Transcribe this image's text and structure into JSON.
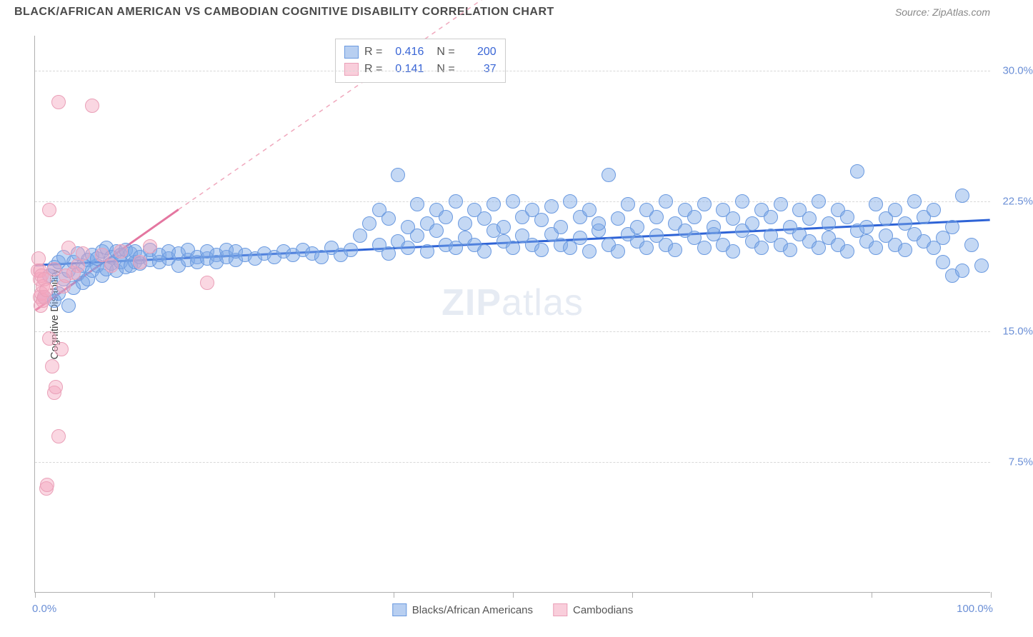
{
  "header": {
    "title": "BLACK/AFRICAN AMERICAN VS CAMBODIAN COGNITIVE DISABILITY CORRELATION CHART",
    "source": "Source: ZipAtlas.com"
  },
  "watermark": {
    "zip": "ZIP",
    "atlas": "atlas"
  },
  "chart": {
    "type": "scatter",
    "x_axis": {
      "min": 0,
      "max": 100,
      "label_left": "0.0%",
      "label_right": "100.0%",
      "tick_step": 12.5
    },
    "y_axis": {
      "title": "Cognitive Disability",
      "min": 0,
      "max": 32,
      "ticks": [
        {
          "v": 7.5,
          "label": "7.5%"
        },
        {
          "v": 15.0,
          "label": "15.0%"
        },
        {
          "v": 22.5,
          "label": "22.5%"
        },
        {
          "v": 30.0,
          "label": "30.0%"
        }
      ]
    },
    "background_color": "#ffffff",
    "grid_color": "#d8d8d8",
    "series": [
      {
        "name": "Blacks/African Americans",
        "color_fill": "rgba(125,168,230,0.45)",
        "color_stroke": "#6b9ae0",
        "marker_radius": 10,
        "trend": {
          "x1": 0,
          "y1": 18.8,
          "x2": 100,
          "y2": 21.4,
          "color": "#2e63d6",
          "width": 3,
          "dash": ""
        },
        "stats": {
          "R": "0.416",
          "N": "200"
        },
        "points": [
          [
            1,
            17.0
          ],
          [
            1.5,
            18.2
          ],
          [
            2,
            16.8
          ],
          [
            2,
            18.7
          ],
          [
            2.5,
            17.2
          ],
          [
            2.5,
            19.0
          ],
          [
            3,
            18.0
          ],
          [
            3,
            19.3
          ],
          [
            3.5,
            16.5
          ],
          [
            3.5,
            18.5
          ],
          [
            4,
            17.5
          ],
          [
            4,
            19.0
          ],
          [
            4.5,
            18.3
          ],
          [
            4.5,
            19.5
          ],
          [
            5,
            17.8
          ],
          [
            5,
            18.8
          ],
          [
            5.5,
            19.1
          ],
          [
            5.5,
            18.0
          ],
          [
            6,
            18.5
          ],
          [
            6,
            19.4
          ],
          [
            6.5,
            18.8
          ],
          [
            6.5,
            19.2
          ],
          [
            7,
            18.2
          ],
          [
            7,
            19.6
          ],
          [
            7.5,
            18.6
          ],
          [
            7.5,
            19.8
          ],
          [
            8,
            18.9
          ],
          [
            8,
            19.3
          ],
          [
            8.5,
            18.5
          ],
          [
            8.5,
            19.6
          ],
          [
            9,
            19.0
          ],
          [
            9,
            19.4
          ],
          [
            9.5,
            18.7
          ],
          [
            9.5,
            19.7
          ],
          [
            10,
            18.8
          ],
          [
            10,
            19.5
          ],
          [
            10.5,
            19.0
          ],
          [
            10.5,
            19.6
          ],
          [
            11,
            18.9
          ],
          [
            11,
            19.3
          ],
          [
            12,
            19.1
          ],
          [
            12,
            19.7
          ],
          [
            13,
            19.0
          ],
          [
            13,
            19.4
          ],
          [
            14,
            19.2
          ],
          [
            14,
            19.6
          ],
          [
            15,
            18.8
          ],
          [
            15,
            19.5
          ],
          [
            16,
            19.1
          ],
          [
            16,
            19.7
          ],
          [
            17,
            19.3
          ],
          [
            17,
            19.0
          ],
          [
            18,
            19.2
          ],
          [
            18,
            19.6
          ],
          [
            19,
            19.4
          ],
          [
            19,
            19.0
          ],
          [
            20,
            19.3
          ],
          [
            20,
            19.7
          ],
          [
            21,
            19.1
          ],
          [
            21,
            19.6
          ],
          [
            22,
            19.4
          ],
          [
            23,
            19.2
          ],
          [
            24,
            19.5
          ],
          [
            25,
            19.3
          ],
          [
            26,
            19.6
          ],
          [
            27,
            19.4
          ],
          [
            28,
            19.7
          ],
          [
            29,
            19.5
          ],
          [
            30,
            19.3
          ],
          [
            31,
            19.8
          ],
          [
            32,
            19.4
          ],
          [
            33,
            19.7
          ],
          [
            34,
            20.5
          ],
          [
            35,
            21.2
          ],
          [
            36,
            20.0
          ],
          [
            36,
            22.0
          ],
          [
            37,
            19.5
          ],
          [
            37,
            21.5
          ],
          [
            38,
            20.2
          ],
          [
            38,
            24.0
          ],
          [
            39,
            19.8
          ],
          [
            39,
            21.0
          ],
          [
            40,
            20.5
          ],
          [
            40,
            22.3
          ],
          [
            41,
            19.6
          ],
          [
            41,
            21.2
          ],
          [
            42,
            20.8
          ],
          [
            42,
            22.0
          ],
          [
            43,
            20.0
          ],
          [
            43,
            21.6
          ],
          [
            44,
            19.8
          ],
          [
            44,
            22.5
          ],
          [
            45,
            20.4
          ],
          [
            45,
            21.2
          ],
          [
            46,
            20.0
          ],
          [
            46,
            22.0
          ],
          [
            47,
            19.6
          ],
          [
            47,
            21.5
          ],
          [
            48,
            20.8
          ],
          [
            48,
            22.3
          ],
          [
            49,
            20.2
          ],
          [
            49,
            21.0
          ],
          [
            50,
            19.8
          ],
          [
            50,
            22.5
          ],
          [
            51,
            20.5
          ],
          [
            51,
            21.6
          ],
          [
            52,
            20.0
          ],
          [
            52,
            22.0
          ],
          [
            53,
            19.7
          ],
          [
            53,
            21.4
          ],
          [
            54,
            20.6
          ],
          [
            54,
            22.2
          ],
          [
            55,
            20.0
          ],
          [
            55,
            21.0
          ],
          [
            56,
            19.8
          ],
          [
            56,
            22.5
          ],
          [
            57,
            20.4
          ],
          [
            57,
            21.6
          ],
          [
            58,
            19.6
          ],
          [
            58,
            22.0
          ],
          [
            59,
            20.8
          ],
          [
            59,
            21.2
          ],
          [
            60,
            20.0
          ],
          [
            60,
            24.0
          ],
          [
            61,
            19.6
          ],
          [
            61,
            21.5
          ],
          [
            62,
            20.6
          ],
          [
            62,
            22.3
          ],
          [
            63,
            20.2
          ],
          [
            63,
            21.0
          ],
          [
            64,
            19.8
          ],
          [
            64,
            22.0
          ],
          [
            65,
            20.5
          ],
          [
            65,
            21.6
          ],
          [
            66,
            20.0
          ],
          [
            66,
            22.5
          ],
          [
            67,
            19.7
          ],
          [
            67,
            21.2
          ],
          [
            68,
            20.8
          ],
          [
            68,
            22.0
          ],
          [
            69,
            20.4
          ],
          [
            69,
            21.6
          ],
          [
            70,
            19.8
          ],
          [
            70,
            22.3
          ],
          [
            71,
            20.6
          ],
          [
            71,
            21.0
          ],
          [
            72,
            20.0
          ],
          [
            72,
            22.0
          ],
          [
            73,
            19.6
          ],
          [
            73,
            21.5
          ],
          [
            74,
            20.8
          ],
          [
            74,
            22.5
          ],
          [
            75,
            20.2
          ],
          [
            75,
            21.2
          ],
          [
            76,
            19.8
          ],
          [
            76,
            22.0
          ],
          [
            77,
            20.5
          ],
          [
            77,
            21.6
          ],
          [
            78,
            20.0
          ],
          [
            78,
            22.3
          ],
          [
            79,
            19.7
          ],
          [
            79,
            21.0
          ],
          [
            80,
            20.6
          ],
          [
            80,
            22.0
          ],
          [
            81,
            20.2
          ],
          [
            81,
            21.5
          ],
          [
            82,
            19.8
          ],
          [
            82,
            22.5
          ],
          [
            83,
            20.4
          ],
          [
            83,
            21.2
          ],
          [
            84,
            20.0
          ],
          [
            84,
            22.0
          ],
          [
            85,
            19.6
          ],
          [
            85,
            21.6
          ],
          [
            86,
            20.8
          ],
          [
            86,
            24.2
          ],
          [
            87,
            20.2
          ],
          [
            87,
            21.0
          ],
          [
            88,
            19.8
          ],
          [
            88,
            22.3
          ],
          [
            89,
            20.5
          ],
          [
            89,
            21.5
          ],
          [
            90,
            20.0
          ],
          [
            90,
            22.0
          ],
          [
            91,
            19.7
          ],
          [
            91,
            21.2
          ],
          [
            92,
            20.6
          ],
          [
            92,
            22.5
          ],
          [
            93,
            20.2
          ],
          [
            93,
            21.6
          ],
          [
            94,
            19.8
          ],
          [
            94,
            22.0
          ],
          [
            95,
            20.4
          ],
          [
            95,
            19.0
          ],
          [
            96,
            18.2
          ],
          [
            96,
            21.0
          ],
          [
            97,
            22.8
          ],
          [
            97,
            18.5
          ],
          [
            98,
            20.0
          ],
          [
            99,
            18.8
          ]
        ]
      },
      {
        "name": "Cambodians",
        "color_fill": "rgba(244,166,190,0.45)",
        "color_stroke": "#eaa0b8",
        "marker_radius": 10,
        "trend_solid": {
          "x1": 0,
          "y1": 16.2,
          "x2": 15,
          "y2": 22.0,
          "color": "#e476a0",
          "width": 3
        },
        "trend_dash": {
          "x1": 15,
          "y1": 22.0,
          "x2": 65,
          "y2": 41.0,
          "color": "#f0a8bd",
          "width": 1.5,
          "dash": "6,6"
        },
        "stats": {
          "R": "0.141",
          "N": "37"
        },
        "points": [
          [
            0.3,
            18.5
          ],
          [
            0.4,
            19.2
          ],
          [
            0.5,
            17.0
          ],
          [
            0.5,
            18.0
          ],
          [
            0.5,
            18.5
          ],
          [
            0.6,
            16.5
          ],
          [
            0.7,
            17.2
          ],
          [
            0.7,
            18.2
          ],
          [
            0.8,
            16.8
          ],
          [
            0.8,
            17.6
          ],
          [
            1.0,
            17.0
          ],
          [
            1.0,
            18.0
          ],
          [
            1.2,
            17.4
          ],
          [
            1.2,
            6.0
          ],
          [
            1.3,
            6.2
          ],
          [
            1.5,
            14.6
          ],
          [
            1.5,
            22.0
          ],
          [
            1.8,
            13.0
          ],
          [
            2.0,
            18.6
          ],
          [
            2.0,
            11.5
          ],
          [
            2.2,
            11.8
          ],
          [
            2.5,
            9.0
          ],
          [
            2.5,
            28.2
          ],
          [
            2.8,
            14.0
          ],
          [
            3.0,
            17.6
          ],
          [
            3.2,
            18.2
          ],
          [
            3.5,
            19.8
          ],
          [
            4.0,
            18.4
          ],
          [
            4.5,
            18.8
          ],
          [
            5.0,
            19.5
          ],
          [
            6.0,
            28.0
          ],
          [
            7.0,
            19.4
          ],
          [
            8.0,
            18.8
          ],
          [
            9.0,
            19.6
          ],
          [
            11.0,
            19.0
          ],
          [
            12.0,
            19.9
          ],
          [
            18.0,
            17.8
          ]
        ]
      }
    ],
    "stats_labels": {
      "R": "R =",
      "N": "N ="
    },
    "legend": {
      "items": [
        {
          "label": "Blacks/African Americans",
          "fill": "rgba(125,168,230,0.55)",
          "stroke": "#6b9ae0"
        },
        {
          "label": "Cambodians",
          "fill": "rgba(244,166,190,0.55)",
          "stroke": "#eaa0b8"
        }
      ]
    }
  }
}
